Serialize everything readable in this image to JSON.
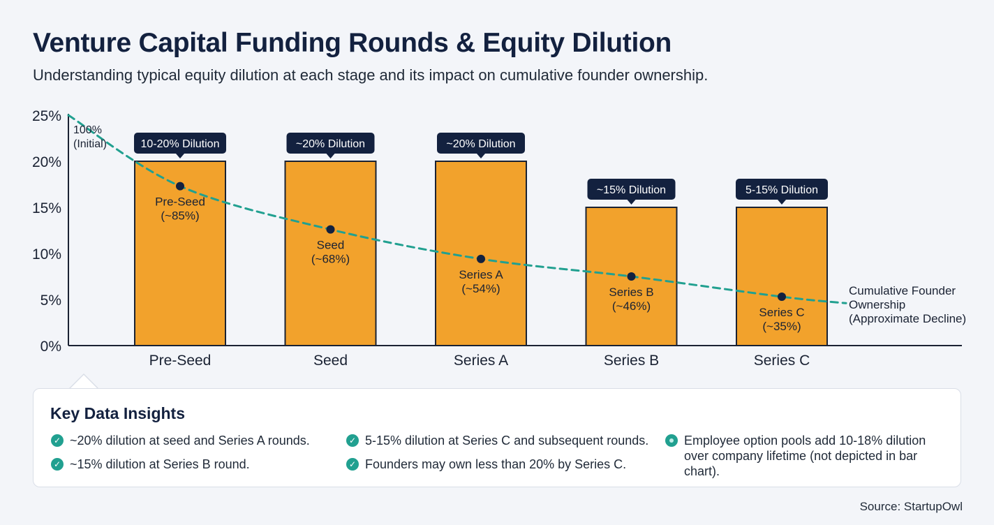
{
  "title": "Venture Capital Funding Rounds & Equity Dilution",
  "subtitle": "Understanding typical equity dilution at each stage and its impact on cumulative founder ownership.",
  "chart_data": {
    "type": "bar",
    "categories": [
      "Pre-Seed",
      "Seed",
      "Series A",
      "Series B",
      "Series C"
    ],
    "series": [
      {
        "values": [
          20,
          20,
          20,
          15,
          15
        ]
      }
    ],
    "bar_labels": [
      "10-20% Dilution",
      "~20% Dilution",
      "~20% Dilution",
      "~15% Dilution",
      "5-15% Dilution"
    ],
    "ylim": [
      0,
      25
    ],
    "yticks": [
      "0%",
      "5%",
      "10%",
      "15%",
      "20%",
      "25%"
    ],
    "ytick_values": [
      0,
      5,
      10,
      15,
      20,
      25
    ],
    "bar_color": "#f2a22c",
    "label_bg_color": "#13213f",
    "line_color": "#21a090",
    "ownership_line": {
      "start_label": [
        "100%",
        "(Initial)"
      ],
      "start_value_y": 25,
      "points": [
        {
          "category": "Pre-Seed",
          "y": 17.3,
          "label": [
            "Pre-Seed",
            "(~85%)"
          ]
        },
        {
          "category": "Seed",
          "y": 12.6,
          "label": [
            "Seed",
            "(~68%)"
          ]
        },
        {
          "category": "Series A",
          "y": 9.4,
          "label": [
            "Series A",
            "(~54%)"
          ]
        },
        {
          "category": "Series B",
          "y": 7.5,
          "label": [
            "Series B",
            "(~46%)"
          ]
        },
        {
          "category": "Series C",
          "y": 5.3,
          "label": [
            "Series C",
            "(~35%)"
          ]
        }
      ],
      "end_y": 4.6,
      "end_label": [
        "Cumulative Founder",
        "Ownership",
        "(Approximate Decline)"
      ]
    }
  },
  "insights": {
    "title": "Key Data Insights",
    "items": [
      "~20% dilution at seed and Series A rounds.",
      "~15% dilution at Series B round.",
      "5-15% dilution at Series C and subsequent rounds.",
      "Founders may own less than 20% by Series C.",
      "Employee option pools add 10-18% dilution over company lifetime (not depicted in bar chart)."
    ],
    "check_icon": "check-circle-icon",
    "info_icon": "dot-circle-icon"
  },
  "source": "Source: StartupOwl"
}
